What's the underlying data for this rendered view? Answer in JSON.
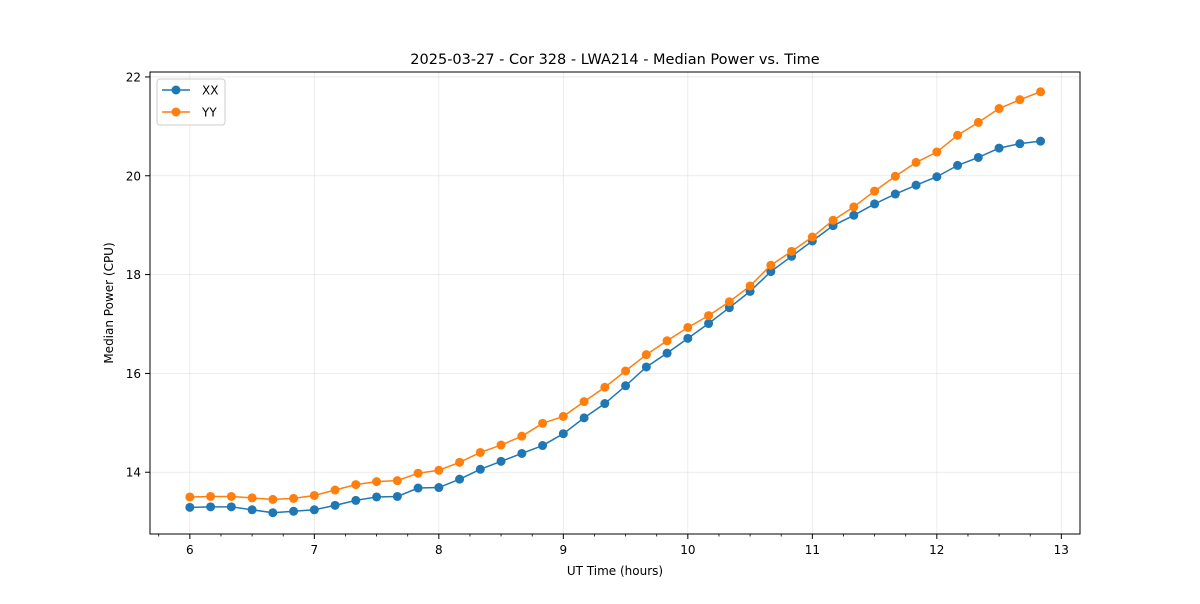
{
  "chart_data": {
    "type": "line",
    "title": "2025-03-27 - Cor 328 - LWA214 - Median Power vs. Time",
    "xlabel": "UT Time (hours)",
    "ylabel": "Median Power (CPU)",
    "xlim": [
      5.68,
      13.15
    ],
    "ylim": [
      12.75,
      22.1
    ],
    "x_ticks": [
      6,
      7,
      8,
      9,
      10,
      11,
      12,
      13
    ],
    "y_ticks": [
      14,
      16,
      18,
      20,
      22
    ],
    "grid": true,
    "legend_location": "upper-left",
    "x": [
      6.0,
      6.1667,
      6.3333,
      6.5,
      6.6667,
      6.8333,
      7.0,
      7.1667,
      7.3333,
      7.5,
      7.6667,
      7.8333,
      8.0,
      8.1667,
      8.3333,
      8.5,
      8.6667,
      8.8333,
      9.0,
      9.1667,
      9.3333,
      9.5,
      9.6667,
      9.8333,
      10.0,
      10.1667,
      10.3333,
      10.5,
      10.6667,
      10.8333,
      11.0,
      11.1667,
      11.3333,
      11.5,
      11.6667,
      11.8333,
      12.0,
      12.1667,
      12.3333,
      12.5,
      12.6667,
      12.8333
    ],
    "series": [
      {
        "name": "XX",
        "color": "#1f77b4",
        "values": [
          13.29,
          13.3,
          13.3,
          13.24,
          13.18,
          13.21,
          13.24,
          13.33,
          13.43,
          13.5,
          13.51,
          13.68,
          13.69,
          13.86,
          14.06,
          14.22,
          14.38,
          14.54,
          14.78,
          15.1,
          15.39,
          15.75,
          16.13,
          16.41,
          16.71,
          17.01,
          17.33,
          17.66,
          18.06,
          18.37,
          18.68,
          18.99,
          19.2,
          19.43,
          19.63,
          19.81,
          19.98,
          20.21,
          20.37,
          20.56,
          20.65,
          20.7
        ]
      },
      {
        "name": "YY",
        "color": "#ff7f0e",
        "values": [
          13.5,
          13.51,
          13.51,
          13.48,
          13.45,
          13.47,
          13.53,
          13.64,
          13.75,
          13.81,
          13.83,
          13.98,
          14.04,
          14.2,
          14.4,
          14.55,
          14.73,
          14.99,
          15.13,
          15.43,
          15.72,
          16.05,
          16.38,
          16.66,
          16.93,
          17.17,
          17.45,
          17.77,
          18.19,
          18.47,
          18.76,
          19.1,
          19.37,
          19.69,
          19.99,
          20.27,
          20.48,
          20.82,
          21.08,
          21.36,
          21.54,
          21.7
        ]
      }
    ]
  }
}
